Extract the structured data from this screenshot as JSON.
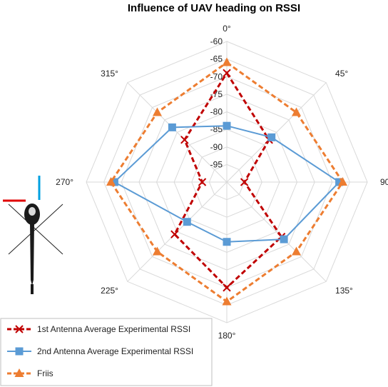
{
  "chart_data": {
    "type": "radar",
    "title": "Influence of UAV heading on RSSI",
    "categories": [
      "0°",
      "45°",
      "90°",
      "135°",
      "180°",
      "225°",
      "270°",
      "315°"
    ],
    "r_ticks": [
      "-60",
      "-65",
      "-70",
      "-75",
      "-80",
      "-85",
      "-90",
      "-95"
    ],
    "rlim": [
      -100,
      -60
    ],
    "grid": true,
    "legend_position": "bottom-left",
    "series": [
      {
        "name": "1st Antenna Average Experimental RSSI",
        "values": [
          -69,
          -83,
          -95,
          -78,
          -70,
          -79,
          -93,
          -83
        ],
        "color": "#c00000",
        "line": "dashed",
        "marker": "x"
      },
      {
        "name": "2nd Antenna Average Experimental RSSI",
        "values": [
          -84,
          -82,
          -68,
          -77,
          -83,
          -84,
          -68,
          -78
        ],
        "color": "#5b9bd5",
        "line": "solid",
        "marker": "square"
      },
      {
        "name": "Friis",
        "values": [
          -66,
          -72,
          -67,
          -72,
          -66,
          -72,
          -67,
          -72
        ],
        "color": "#ed7d31",
        "line": "dashed",
        "marker": "triangle"
      }
    ]
  }
}
